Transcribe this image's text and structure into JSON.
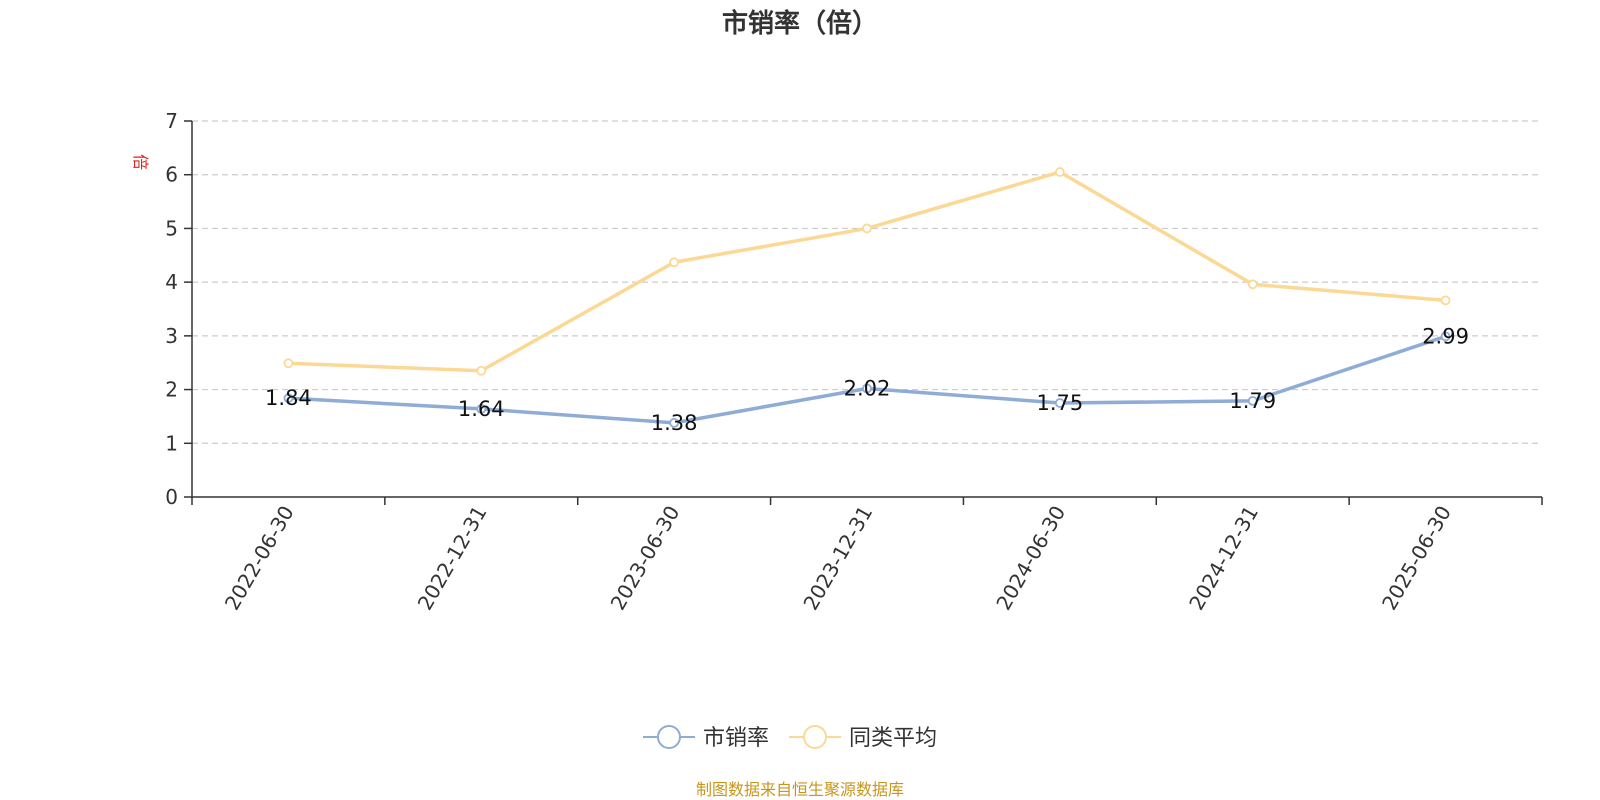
{
  "chart_data": {
    "type": "line",
    "title": "市销率（倍）",
    "ylabel": "倍",
    "xlabel": "",
    "categories": [
      "2022-06-30",
      "2022-12-31",
      "2023-06-30",
      "2023-12-31",
      "2024-06-30",
      "2024-12-31",
      "2025-06-30"
    ],
    "ylim": [
      0,
      7
    ],
    "yticks": [
      0,
      1,
      2,
      3,
      4,
      5,
      6,
      7
    ],
    "grid": true,
    "legend_position": "bottom",
    "series": [
      {
        "name": "市销率",
        "values": [
          1.84,
          1.64,
          1.38,
          2.02,
          1.75,
          1.79,
          2.99
        ],
        "color": "#8eacd6",
        "show_labels": true
      },
      {
        "name": "同类平均",
        "values": [
          2.49,
          2.35,
          4.37,
          5.0,
          6.05,
          3.96,
          3.66
        ],
        "color": "#fcd895",
        "show_labels": false
      }
    ]
  },
  "source_note": "制图数据来自恒生聚源数据库",
  "colors": {
    "unit_label": "#e02020",
    "source_note": "#c8961e",
    "axis": "#333333",
    "grid": "#cccccc"
  }
}
